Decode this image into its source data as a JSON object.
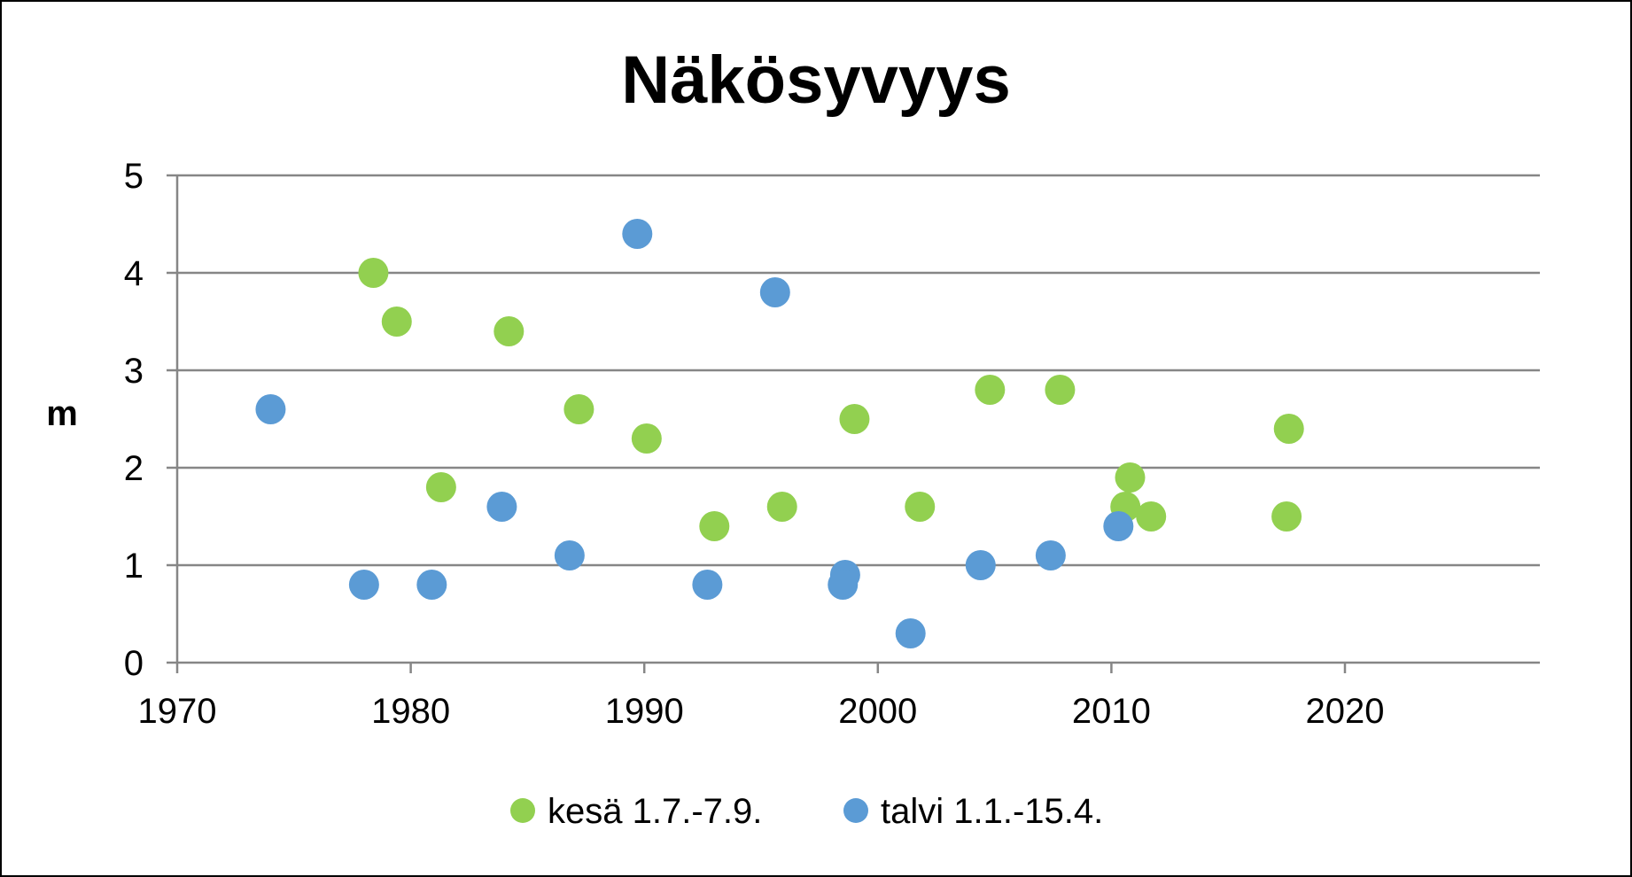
{
  "chart_data": {
    "type": "scatter",
    "title": "Näkösyvyys",
    "xlabel": "",
    "ylabel": "m",
    "xlim": [
      1970,
      2028
    ],
    "ylim": [
      0,
      5
    ],
    "xticks": [
      1970,
      1980,
      1990,
      2000,
      2010,
      2020
    ],
    "yticks": [
      0,
      1,
      2,
      3,
      4,
      5
    ],
    "grid": "horizontal",
    "legend_position": "bottom",
    "series": [
      {
        "name": "kesä 1.7.-7.9.",
        "color": "#92D050",
        "points": [
          {
            "x": 1978.4,
            "y": 4.0
          },
          {
            "x": 1979.4,
            "y": 3.5
          },
          {
            "x": 1981.3,
            "y": 1.8
          },
          {
            "x": 1984.2,
            "y": 3.4
          },
          {
            "x": 1987.2,
            "y": 2.6
          },
          {
            "x": 1990.1,
            "y": 2.3
          },
          {
            "x": 1993.0,
            "y": 1.4
          },
          {
            "x": 1995.9,
            "y": 1.6
          },
          {
            "x": 1999.0,
            "y": 2.5
          },
          {
            "x": 2001.8,
            "y": 1.6
          },
          {
            "x": 2004.8,
            "y": 2.8
          },
          {
            "x": 2007.8,
            "y": 2.8
          },
          {
            "x": 2010.8,
            "y": 1.9
          },
          {
            "x": 2010.6,
            "y": 1.6
          },
          {
            "x": 2011.7,
            "y": 1.5
          },
          {
            "x": 2017.6,
            "y": 2.4
          },
          {
            "x": 2017.5,
            "y": 1.5
          }
        ]
      },
      {
        "name": "talvi 1.1.-15.4.",
        "color": "#5B9BD5",
        "points": [
          {
            "x": 1974.0,
            "y": 2.6
          },
          {
            "x": 1978.0,
            "y": 0.8
          },
          {
            "x": 1980.9,
            "y": 0.8
          },
          {
            "x": 1983.9,
            "y": 1.6
          },
          {
            "x": 1986.8,
            "y": 1.1
          },
          {
            "x": 1989.7,
            "y": 4.4
          },
          {
            "x": 1992.7,
            "y": 0.8
          },
          {
            "x": 1995.6,
            "y": 3.8
          },
          {
            "x": 1998.6,
            "y": 0.9
          },
          {
            "x": 1998.5,
            "y": 0.8
          },
          {
            "x": 2001.4,
            "y": 0.3
          },
          {
            "x": 2004.4,
            "y": 1.0
          },
          {
            "x": 2007.4,
            "y": 1.1
          },
          {
            "x": 2010.3,
            "y": 1.4
          }
        ]
      }
    ]
  }
}
